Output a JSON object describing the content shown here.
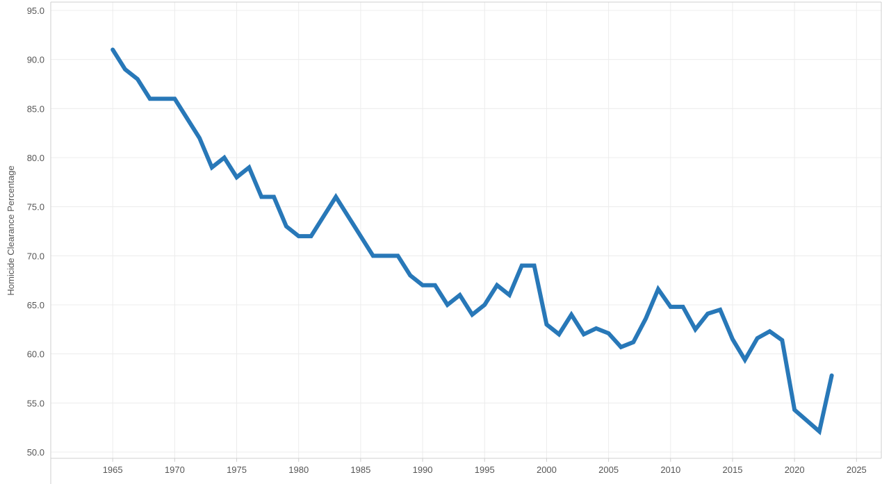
{
  "chart_data": {
    "type": "line",
    "title": "",
    "xlabel": "",
    "ylabel": "Homicide Clearance Percentage",
    "xlim": [
      1960,
      2027
    ],
    "ylim": [
      50,
      95
    ],
    "x_ticks": [
      1965,
      1970,
      1975,
      1980,
      1985,
      1990,
      1995,
      2000,
      2005,
      2010,
      2015,
      2020,
      2025
    ],
    "y_ticks": [
      "50.0",
      "55.0",
      "60.0",
      "65.0",
      "70.0",
      "75.0",
      "80.0",
      "85.0",
      "90.0",
      "95.0"
    ],
    "grid": true,
    "line_color": "#2878b8",
    "x": [
      1965,
      1966,
      1967,
      1968,
      1969,
      1970,
      1971,
      1972,
      1973,
      1974,
      1975,
      1976,
      1977,
      1978,
      1979,
      1980,
      1981,
      1982,
      1983,
      1984,
      1985,
      1986,
      1987,
      1988,
      1989,
      1990,
      1991,
      1992,
      1993,
      1994,
      1995,
      1996,
      1997,
      1998,
      1999,
      2000,
      2001,
      2002,
      2003,
      2004,
      2005,
      2006,
      2007,
      2008,
      2009,
      2010,
      2011,
      2012,
      2013,
      2014,
      2015,
      2016,
      2017,
      2018,
      2019,
      2020,
      2021,
      2022,
      2023
    ],
    "values": [
      91,
      89,
      88,
      86,
      86,
      86,
      84,
      82,
      79,
      80,
      78,
      79,
      76,
      76,
      73,
      72,
      72,
      74,
      76,
      74,
      72,
      70,
      70,
      70,
      68,
      67,
      67,
      65,
      66,
      64,
      65,
      67,
      66,
      69,
      69,
      63,
      62,
      64,
      62,
      62.6,
      62.1,
      60.7,
      61.2,
      63.6,
      66.6,
      64.8,
      64.8,
      62.5,
      64.1,
      64.5,
      61.5,
      59.4,
      61.6,
      62.3,
      61.4,
      54.3,
      53.2,
      52.1,
      57.8
    ]
  }
}
